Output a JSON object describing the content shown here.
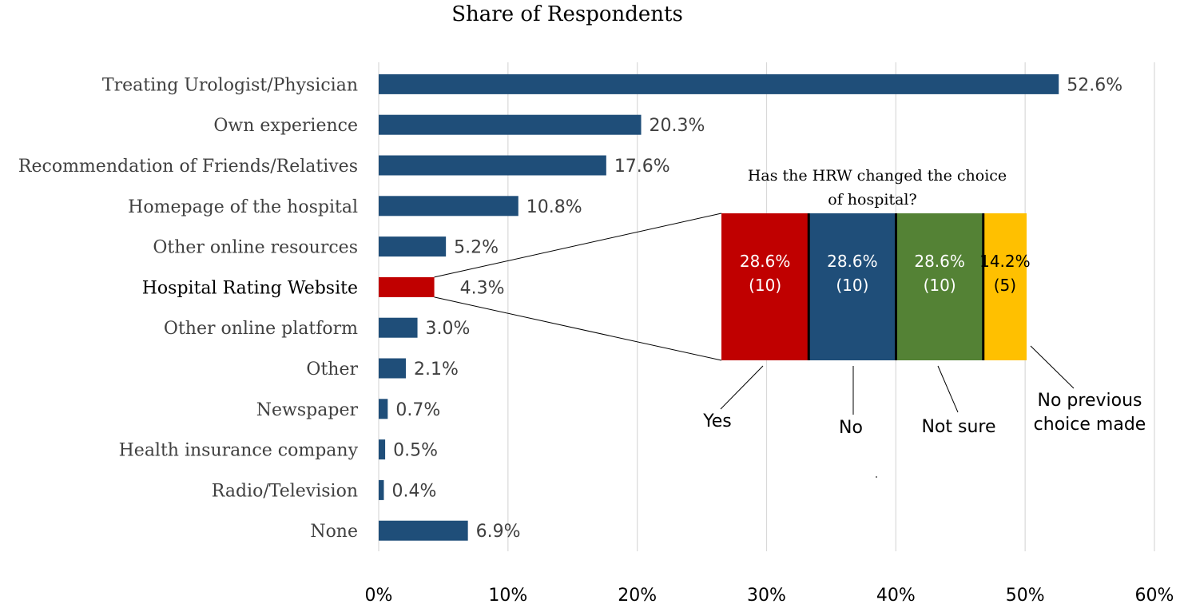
{
  "chart_data": [
    {
      "type": "bar",
      "orientation": "horizontal",
      "title": "Share of Respondents",
      "categories": [
        "Treating Urologist/Physician",
        "Own experience",
        "Recommendation of Friends/Relatives",
        "Homepage of the hospital",
        "Other online resources",
        "Hospital Rating Website",
        "Other online platform",
        "Other",
        "Newspaper",
        "Health insurance company",
        "Radio/Television",
        "None"
      ],
      "values": [
        52.6,
        20.3,
        17.6,
        10.8,
        5.2,
        4.3,
        3.0,
        2.1,
        0.7,
        0.5,
        0.4,
        6.9
      ],
      "value_labels": [
        "52.6%",
        "20.3%",
        "17.6%",
        "10.8%",
        "5.2%",
        "4.3%",
        "3.0%",
        "2.1%",
        "0.7%",
        "0.5%",
        "0.4%",
        "6.9%"
      ],
      "highlight_index": 5,
      "xlim": [
        0,
        60
      ],
      "xticks": [
        0,
        10,
        20,
        30,
        40,
        50,
        60
      ],
      "xtick_labels": [
        "0%",
        "10%",
        "20%",
        "30%",
        "40%",
        "50%",
        "60%"
      ],
      "grid": "vertical",
      "colors": {
        "bar": "#1f4e79",
        "highlight": "#c00000",
        "grid": "#d9d9d9"
      }
    },
    {
      "type": "bar",
      "orientation": "stacked-horizontal",
      "title_lines": [
        "Has the HRW changed the choice",
        "of hospital?"
      ],
      "categories": [
        "Yes",
        "No",
        "Not sure",
        "No previous choice made"
      ],
      "callout_lines": [
        [
          "Yes"
        ],
        [
          "No"
        ],
        [
          "Not sure"
        ],
        [
          "No previous",
          "choice made"
        ]
      ],
      "values": [
        28.6,
        28.6,
        28.6,
        14.2
      ],
      "value_labels": [
        "28.6%",
        "28.6%",
        "28.6%",
        "14.2%"
      ],
      "counts": [
        "(10)",
        "(10)",
        "(10)",
        "(5)"
      ],
      "colors": [
        "#c00000",
        "#1f4e79",
        "#548235",
        "#ffc000"
      ],
      "label_colors": [
        "#ffffff",
        "#ffffff",
        "#ffffff",
        "#000000"
      ]
    }
  ]
}
